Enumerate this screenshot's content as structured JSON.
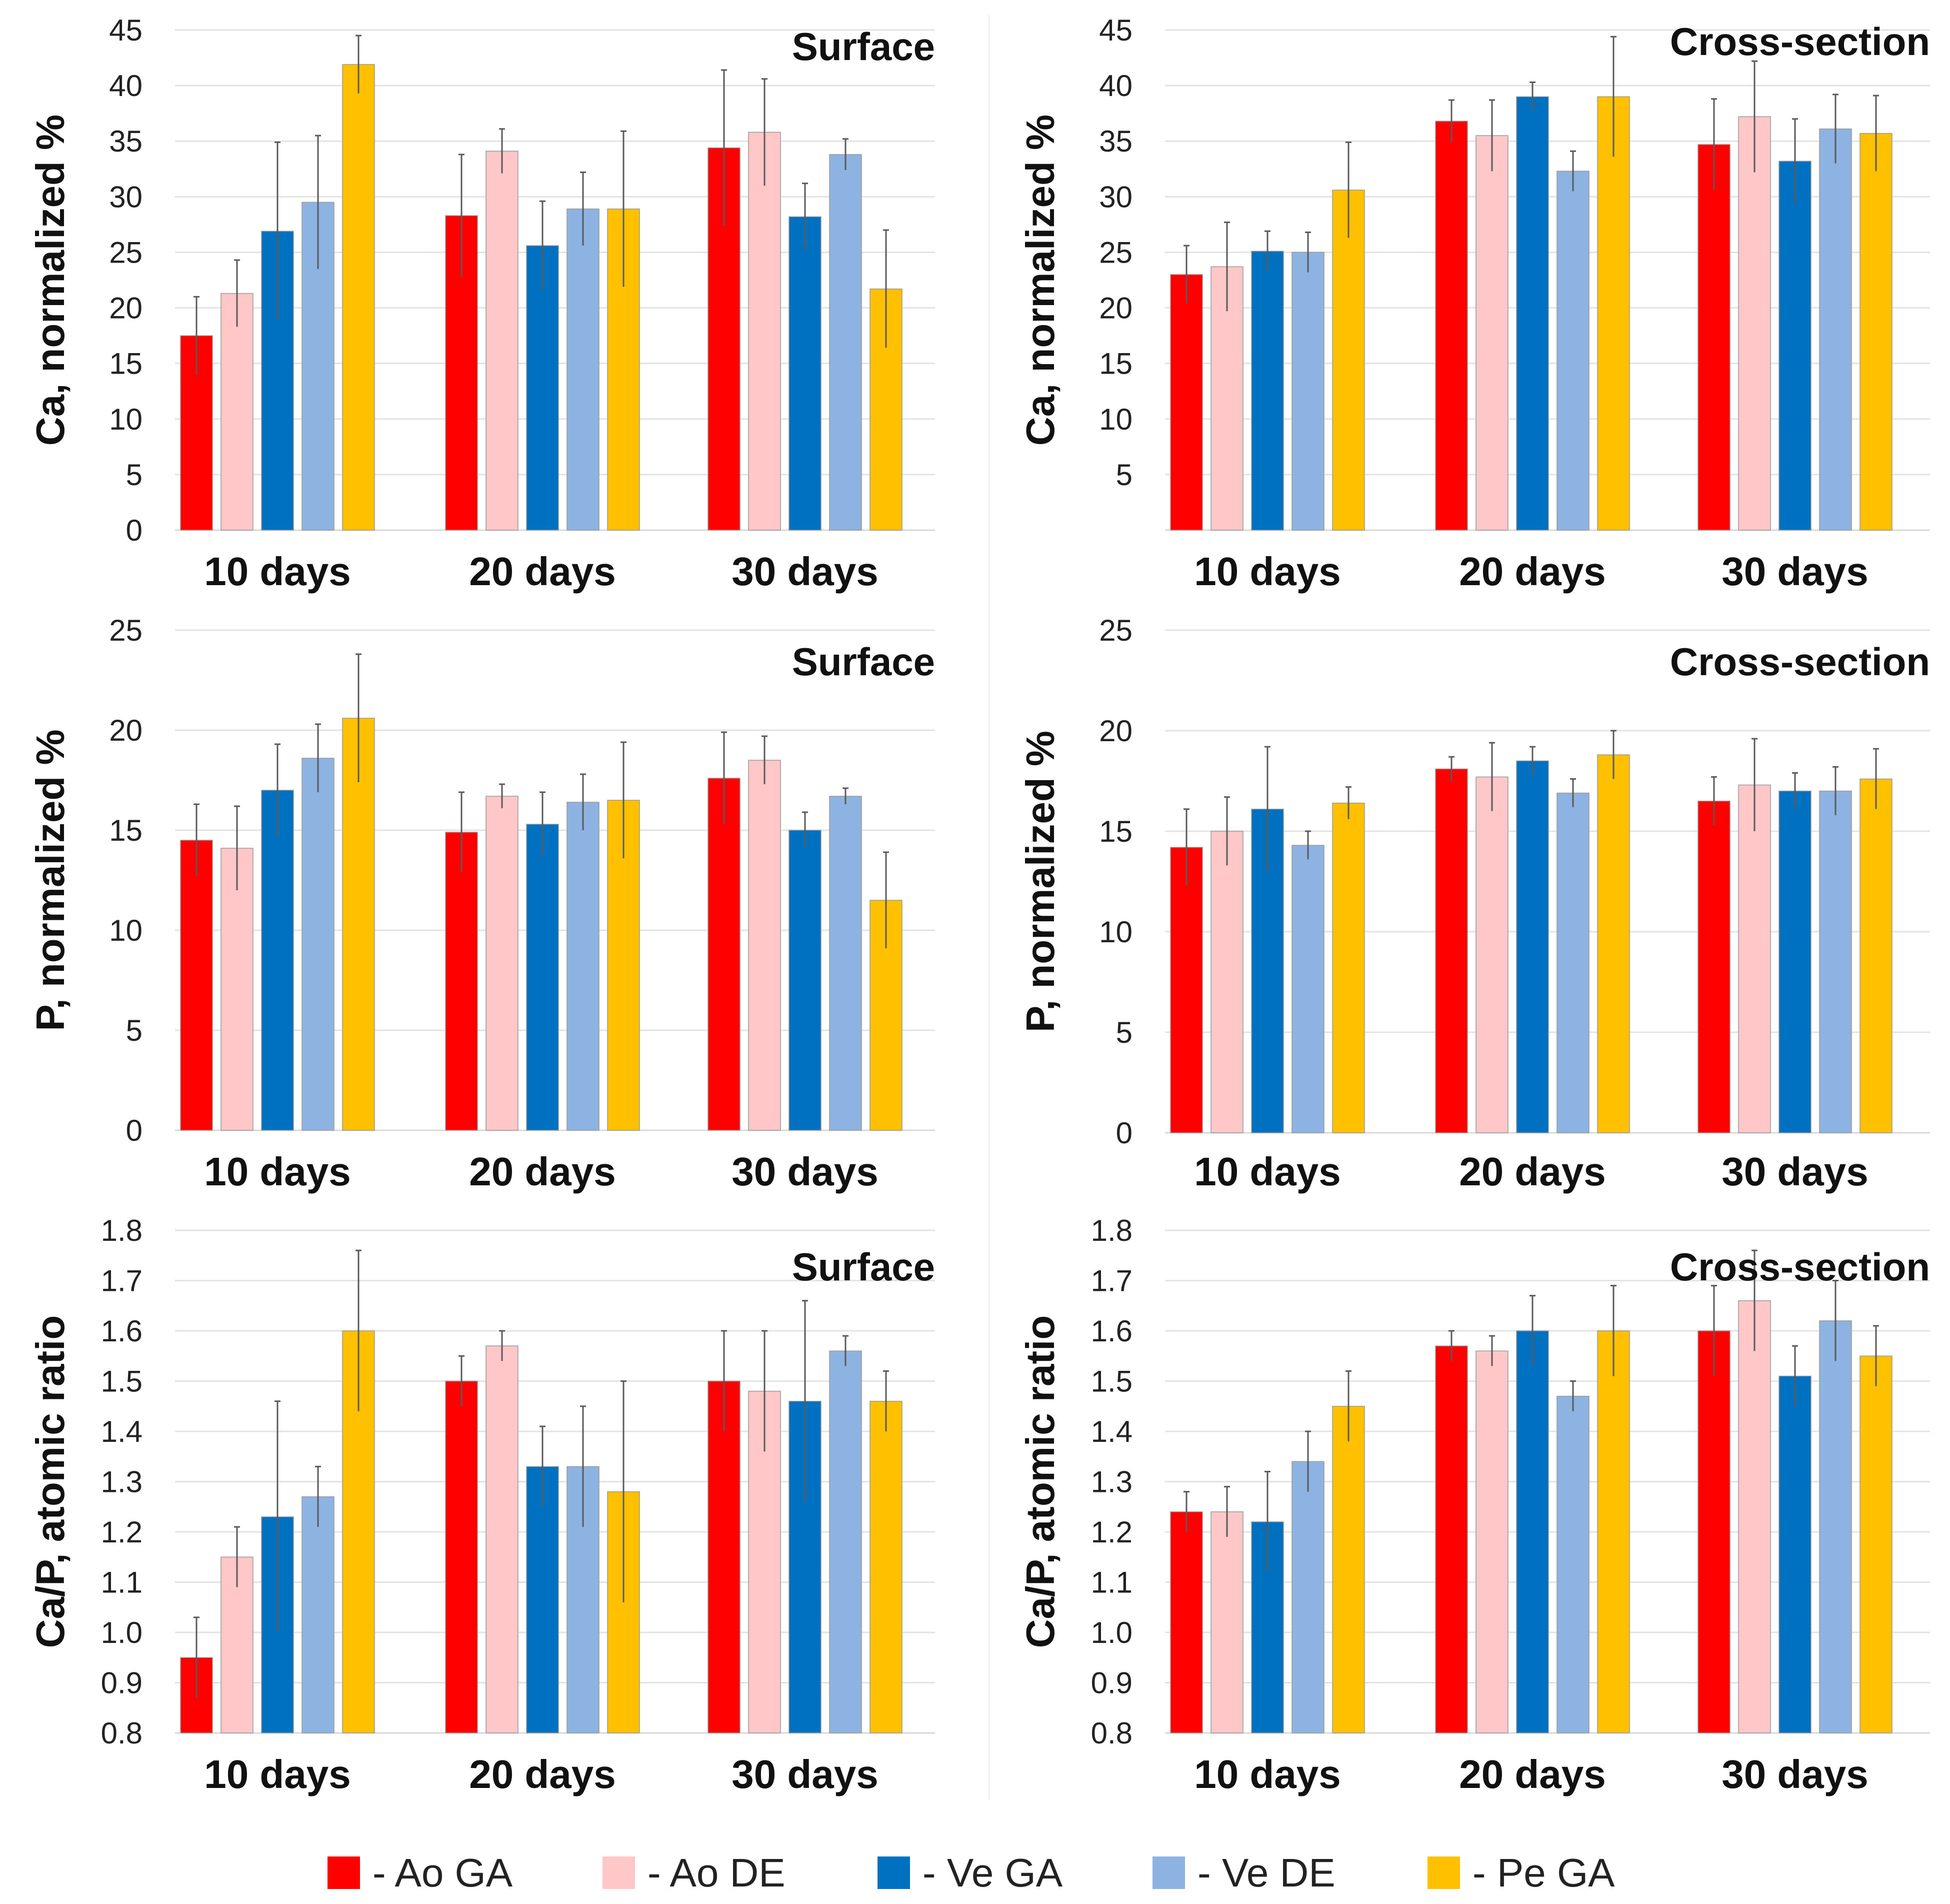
{
  "colors": {
    "Ao GA": "#ff0000",
    "Ao DE": "#ffc7c7",
    "Ve GA": "#0070c0",
    "Ve DE": "#8db3e2",
    "Pe GA": "#ffc000"
  },
  "legend": [
    {
      "key": "Ao GA",
      "label": "- Ao GA"
    },
    {
      "key": "Ao DE",
      "label": "- Ao DE"
    },
    {
      "key": "Ve GA",
      "label": "- Ve GA"
    },
    {
      "key": "Ve DE",
      "label": "- Ve DE"
    },
    {
      "key": "Pe GA",
      "label": "- Pe GA"
    }
  ],
  "chart_data": [
    {
      "type": "bar",
      "title": "Surface",
      "ylabel": "Ca, normalized %",
      "categories": [
        "10 days",
        "20 days",
        "30 days"
      ],
      "ylim": [
        0,
        45
      ],
      "yticks": [
        "0",
        "5",
        "10",
        "15",
        "20",
        "25",
        "30",
        "35",
        "40",
        "45"
      ],
      "ytick_values": [
        0,
        5,
        10,
        15,
        20,
        25,
        30,
        35,
        40,
        45
      ],
      "series": [
        {
          "name": "Ao GA",
          "values": [
            17.5,
            28.3,
            34.4
          ],
          "errors": [
            3.5,
            5.5,
            7.0
          ]
        },
        {
          "name": "Ao DE",
          "values": [
            21.3,
            34.1,
            35.8
          ],
          "errors": [
            3.0,
            2.0,
            4.8
          ]
        },
        {
          "name": "Ve GA",
          "values": [
            26.9,
            25.6,
            28.2
          ],
          "errors": [
            8.0,
            4.0,
            3.0
          ]
        },
        {
          "name": "Ve DE",
          "values": [
            29.5,
            28.9,
            33.8
          ],
          "errors": [
            6.0,
            3.3,
            1.4
          ]
        },
        {
          "name": "Pe GA",
          "values": [
            41.9,
            28.9,
            21.7
          ],
          "errors": [
            2.6,
            7.0,
            5.3
          ]
        }
      ]
    },
    {
      "type": "bar",
      "title": "Cross-section",
      "ylabel": "Ca, normalized %",
      "categories": [
        "10 days",
        "20 days",
        "30 days"
      ],
      "ylim": [
        0,
        45
      ],
      "yticks": [
        "5",
        "10",
        "15",
        "20",
        "25",
        "30",
        "35",
        "40",
        "45"
      ],
      "ytick_values": [
        5,
        10,
        15,
        20,
        25,
        30,
        35,
        40,
        45
      ],
      "series": [
        {
          "name": "Ao GA",
          "values": [
            23.0,
            36.8,
            34.7
          ],
          "errors": [
            2.6,
            1.9,
            4.1
          ]
        },
        {
          "name": "Ao DE",
          "values": [
            23.7,
            35.5,
            37.2
          ],
          "errors": [
            4.0,
            3.2,
            5.0
          ]
        },
        {
          "name": "Ve GA",
          "values": [
            25.1,
            39.0,
            33.2
          ],
          "errors": [
            1.8,
            1.3,
            3.8
          ]
        },
        {
          "name": "Ve DE",
          "values": [
            25.0,
            32.3,
            36.1
          ],
          "errors": [
            1.8,
            1.8,
            3.1
          ]
        },
        {
          "name": "Pe GA",
          "values": [
            30.6,
            39.0,
            35.7
          ],
          "errors": [
            4.3,
            5.4,
            3.4
          ]
        }
      ]
    },
    {
      "type": "bar",
      "title": "Surface",
      "ylabel": "P, normalized %",
      "categories": [
        "10 days",
        "20 days",
        "30 days"
      ],
      "ylim": [
        0,
        25
      ],
      "yticks": [
        "0",
        "5",
        "10",
        "15",
        "20",
        "25"
      ],
      "ytick_values": [
        0,
        5,
        10,
        15,
        20,
        25
      ],
      "series": [
        {
          "name": "Ao GA",
          "values": [
            14.5,
            14.9,
            17.6
          ],
          "errors": [
            1.8,
            2.0,
            2.3
          ]
        },
        {
          "name": "Ao DE",
          "values": [
            14.1,
            16.7,
            18.5
          ],
          "errors": [
            2.1,
            0.6,
            1.2
          ]
        },
        {
          "name": "Ve GA",
          "values": [
            17.0,
            15.3,
            15.0
          ],
          "errors": [
            2.3,
            1.6,
            0.9
          ]
        },
        {
          "name": "Ve DE",
          "values": [
            18.6,
            16.4,
            16.7
          ],
          "errors": [
            1.7,
            1.4,
            0.4
          ]
        },
        {
          "name": "Pe GA",
          "values": [
            20.6,
            16.5,
            11.5
          ],
          "errors": [
            3.2,
            2.9,
            2.4
          ]
        }
      ]
    },
    {
      "type": "bar",
      "title": "Cross-section",
      "ylabel": "P, normalized %",
      "categories": [
        "10 days",
        "20 days",
        "30 days"
      ],
      "ylim": [
        0,
        25
      ],
      "yticks": [
        "0",
        "5",
        "10",
        "15",
        "20",
        "25"
      ],
      "ytick_values": [
        0,
        5,
        10,
        15,
        20,
        25
      ],
      "series": [
        {
          "name": "Ao GA",
          "values": [
            14.2,
            18.1,
            16.5
          ],
          "errors": [
            1.9,
            0.6,
            1.2
          ]
        },
        {
          "name": "Ao DE",
          "values": [
            15.0,
            17.7,
            17.3
          ],
          "errors": [
            1.7,
            1.7,
            2.3
          ]
        },
        {
          "name": "Ve GA",
          "values": [
            16.1,
            18.5,
            17.0
          ],
          "errors": [
            3.1,
            0.7,
            0.9
          ]
        },
        {
          "name": "Ve DE",
          "values": [
            14.3,
            16.9,
            17.0
          ],
          "errors": [
            0.7,
            0.7,
            1.2
          ]
        },
        {
          "name": "Pe GA",
          "values": [
            16.4,
            18.8,
            17.6
          ],
          "errors": [
            0.8,
            1.2,
            1.5
          ]
        }
      ]
    },
    {
      "type": "bar",
      "title": "Surface",
      "ylabel": "Ca/P, atomic ratio",
      "categories": [
        "10 days",
        "20 days",
        "30 days"
      ],
      "ylim": [
        0.8,
        1.8
      ],
      "yticks": [
        "0.8",
        "0.9",
        "1.0",
        "1.1",
        "1.2",
        "1.3",
        "1.4",
        "1.5",
        "1.6",
        "1.7",
        "1.8"
      ],
      "ytick_values": [
        0.8,
        0.9,
        1.0,
        1.1,
        1.2,
        1.3,
        1.4,
        1.5,
        1.6,
        1.7,
        1.8
      ],
      "series": [
        {
          "name": "Ao GA",
          "values": [
            0.95,
            1.5,
            1.5
          ],
          "errors": [
            0.08,
            0.05,
            0.1
          ]
        },
        {
          "name": "Ao DE",
          "values": [
            1.15,
            1.57,
            1.48
          ],
          "errors": [
            0.06,
            0.03,
            0.12
          ]
        },
        {
          "name": "Ve GA",
          "values": [
            1.23,
            1.33,
            1.46
          ],
          "errors": [
            0.23,
            0.08,
            0.2
          ]
        },
        {
          "name": "Ve DE",
          "values": [
            1.27,
            1.33,
            1.56
          ],
          "errors": [
            0.06,
            0.12,
            0.03
          ]
        },
        {
          "name": "Pe GA",
          "values": [
            1.6,
            1.28,
            1.46
          ],
          "errors": [
            0.16,
            0.22,
            0.06
          ]
        }
      ]
    },
    {
      "type": "bar",
      "title": "Cross-section",
      "ylabel": "Ca/P, atomic ratio",
      "categories": [
        "10 days",
        "20 days",
        "30 days"
      ],
      "ylim": [
        0.8,
        1.8
      ],
      "yticks": [
        "0.8",
        "0.9",
        "1.0",
        "1.1",
        "1.2",
        "1.3",
        "1.4",
        "1.5",
        "1.6",
        "1.7",
        "1.8"
      ],
      "ytick_values": [
        0.8,
        0.9,
        1.0,
        1.1,
        1.2,
        1.3,
        1.4,
        1.5,
        1.6,
        1.7,
        1.8
      ],
      "series": [
        {
          "name": "Ao GA",
          "values": [
            1.24,
            1.57,
            1.6
          ],
          "errors": [
            0.04,
            0.03,
            0.09
          ]
        },
        {
          "name": "Ao DE",
          "values": [
            1.24,
            1.56,
            1.66
          ],
          "errors": [
            0.05,
            0.03,
            0.1
          ]
        },
        {
          "name": "Ve GA",
          "values": [
            1.22,
            1.6,
            1.51
          ],
          "errors": [
            0.1,
            0.07,
            0.06
          ]
        },
        {
          "name": "Ve DE",
          "values": [
            1.34,
            1.47,
            1.62
          ],
          "errors": [
            0.06,
            0.03,
            0.08
          ]
        },
        {
          "name": "Pe GA",
          "values": [
            1.45,
            1.6,
            1.55
          ],
          "errors": [
            0.07,
            0.09,
            0.06
          ]
        }
      ]
    }
  ]
}
